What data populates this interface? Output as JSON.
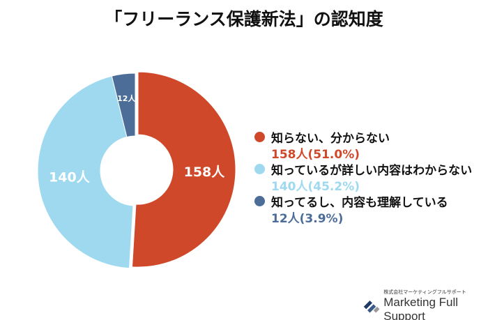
{
  "chart_data": {
    "type": "pie",
    "title": "「フリーランス保護新法」の認知度",
    "donut": true,
    "start": "12 o'clock, clockwise",
    "slices": [
      {
        "name": "知らない、分からない",
        "value": 158,
        "percent": "51.0%",
        "label": "158人",
        "legend_value": "158人(51.0%)",
        "color": "#d0482a",
        "exploded": true
      },
      {
        "name": "知っているが詳しい内容はわからない",
        "value": 140,
        "percent": "45.2%",
        "label": "140人",
        "legend_value": "140人(45.2%)",
        "color": "#9ed9f0",
        "exploded": false
      },
      {
        "name": "知ってるし、内容も理解している",
        "value": 12,
        "percent": "3.9%",
        "label": "12人",
        "legend_value": "12人(3.9%)",
        "color": "#4b6d98",
        "exploded": false
      }
    ],
    "legend_placement": "right"
  },
  "logo": {
    "company_jp": "株式会社マーケティングフルサポート",
    "company_en": "Marketing Full Support"
  }
}
